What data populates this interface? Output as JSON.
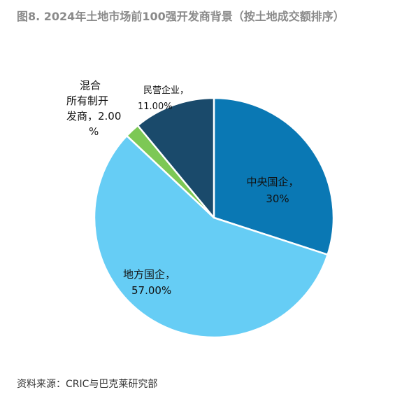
{
  "figure": {
    "title": "图8. 2024年土地市场前100强开发商背景（按土地成交额排序）",
    "source": "资料来源：CRIC与巴克莱研究部"
  },
  "chart_data": {
    "type": "pie",
    "title": "图8. 2024年土地市场前100强开发商背景（按土地成交额排序）",
    "slices": [
      {
        "label": "中央国企",
        "value": 30,
        "value_text": "30%",
        "color": "#0a78b4"
      },
      {
        "label": "地方国企",
        "value": 57.0,
        "value_text": "57.00%",
        "color": "#66cdf5"
      },
      {
        "label": "混合所有制开发商",
        "value": 2.0,
        "value_text": "2.00%",
        "color": "#7dc855"
      },
      {
        "label": "民营企业",
        "value": 11.0,
        "value_text": "11.00%",
        "color": "#1a4a6b"
      }
    ],
    "start": "12 o'clock",
    "direction": "clockwise",
    "legend": "none",
    "labels": {
      "central_soe": [
        "中央国企，",
        "30%"
      ],
      "local_soe": [
        "地方国企，",
        "57.00%"
      ],
      "mixed": [
        "混合",
        "所有制开",
        "发商，2.00",
        "%"
      ],
      "private": [
        "民营企业，",
        "11.00%"
      ]
    }
  }
}
